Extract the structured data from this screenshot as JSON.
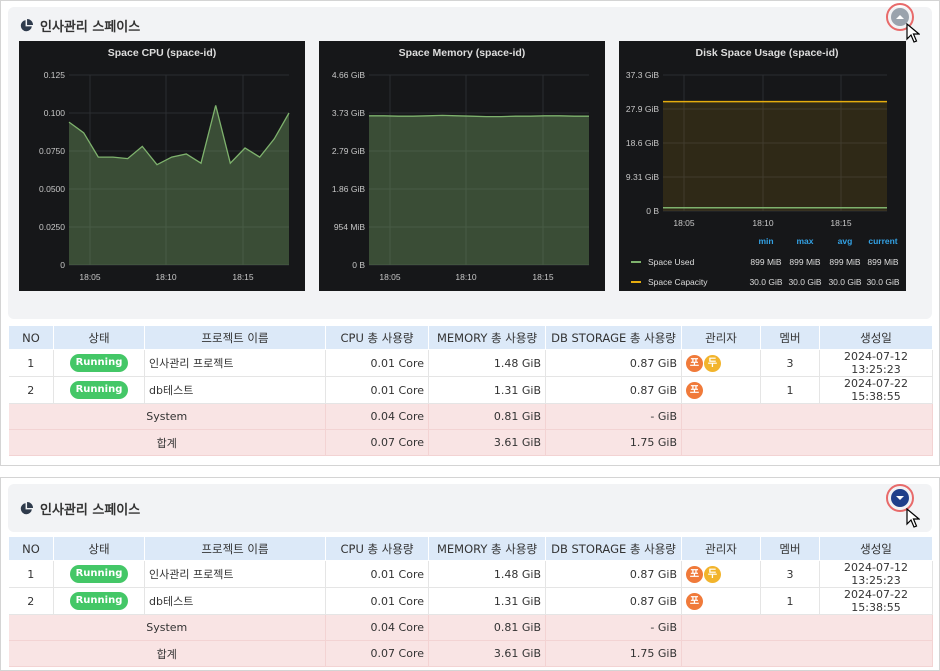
{
  "colors": {
    "running": "#44c767",
    "header_bg": "#dce9f8",
    "summary_bg": "#f9e4e4",
    "chart_bg": "#161719",
    "series_green": "#7eb26d",
    "series_yellow": "#e5ac0e"
  },
  "icons": {
    "title": "pie-chart-icon",
    "collapse": "chevron-up-icon",
    "expand": "chevron-down-icon",
    "pointer": "cursor-icon"
  },
  "top": {
    "space_title": "인사관리 스페이스",
    "charts": {
      "cpu": {
        "title": "Space CPU (space-id)"
      },
      "memory": {
        "title": "Space Memory (space-id)"
      },
      "disk": {
        "title": "Disk Space Usage (space-id)",
        "legend_headers": [
          "min",
          "max",
          "avg",
          "current"
        ],
        "legend_rows": [
          {
            "name": "Space Used",
            "min": "899 MiB",
            "max": "899 MiB",
            "avg": "899 MiB",
            "current": "899 MiB"
          },
          {
            "name": "Space Capacity",
            "min": "30.0 GiB",
            "max": "30.0 GiB",
            "avg": "30.0 GiB",
            "current": "30.0 GiB"
          }
        ]
      }
    }
  },
  "bottom": {
    "space_title": "인사관리 스페이스"
  },
  "table": {
    "headers": [
      "NO",
      "상태",
      "프로젝트 이름",
      "CPU 총 사용량",
      "MEMORY 총 사용량",
      "DB STORAGE 총 사용량",
      "관리자",
      "멤버",
      "생성일"
    ],
    "rows": [
      {
        "no": "1",
        "status": "Running",
        "name": "인사관리 프로젝트",
        "cpu": "0.01 Core",
        "memory": "1.48 GiB",
        "storage": "0.87 GiB",
        "admin1": "포",
        "admin2": "두",
        "members": "3",
        "created": "2024-07-12 13:25:23"
      },
      {
        "no": "2",
        "status": "Running",
        "name": "db테스트",
        "cpu": "0.01 Core",
        "memory": "1.31 GiB",
        "storage": "0.87 GiB",
        "admin1": "포",
        "members": "1",
        "created": "2024-07-22 15:38:55"
      }
    ],
    "summary": [
      {
        "label": "System",
        "cpu": "0.04 Core",
        "memory": "0.81 GiB",
        "storage": "- GiB"
      },
      {
        "label": "합계",
        "cpu": "0.07 Core",
        "memory": "3.61 GiB",
        "storage": "1.75 GiB"
      }
    ]
  },
  "chart_data": [
    {
      "type": "area",
      "title": "Space CPU (space-id)",
      "xlabel": "",
      "ylabel": "",
      "x_ticks": [
        "18:05",
        "18:10",
        "18:15"
      ],
      "y_ticks": [
        "0",
        "0.0250",
        "0.0500",
        "0.0750",
        "0.100",
        "0.125"
      ],
      "ylim": [
        0,
        0.125
      ],
      "series": [
        {
          "values": [
            0.094,
            0.087,
            0.071,
            0.071,
            0.07,
            0.078,
            0.066,
            0.071,
            0.073,
            0.067,
            0.105,
            0.067,
            0.077,
            0.071,
            0.083,
            0.1
          ]
        }
      ]
    },
    {
      "type": "area",
      "title": "Space Memory (space-id)",
      "xlabel": "",
      "ylabel": "",
      "x_ticks": [
        "18:05",
        "18:10",
        "18:15"
      ],
      "y_ticks": [
        "0 B",
        "954 MiB",
        "1.86 GiB",
        "2.79 GiB",
        "3.73 GiB",
        "4.66 GiB"
      ],
      "ylim_gib": [
        0,
        4.66
      ],
      "series": [
        {
          "values_gib": [
            3.66,
            3.66,
            3.65,
            3.65,
            3.66,
            3.67,
            3.66,
            3.65,
            3.64,
            3.64,
            3.65,
            3.65,
            3.66,
            3.66,
            3.65,
            3.65
          ]
        }
      ]
    },
    {
      "type": "line",
      "title": "Disk Space Usage (space-id)",
      "xlabel": "",
      "ylabel": "",
      "x_ticks": [
        "18:05",
        "18:10",
        "18:15"
      ],
      "y_ticks": [
        "0 B",
        "9.31 GiB",
        "18.6 GiB",
        "27.9 GiB",
        "37.3 GiB"
      ],
      "ylim_gib": [
        0,
        37.3
      ],
      "series": [
        {
          "name": "Space Used",
          "values_gib": [
            0.878,
            0.878
          ]
        },
        {
          "name": "Space Capacity",
          "values_gib": [
            30.0,
            30.0
          ]
        }
      ]
    }
  ]
}
